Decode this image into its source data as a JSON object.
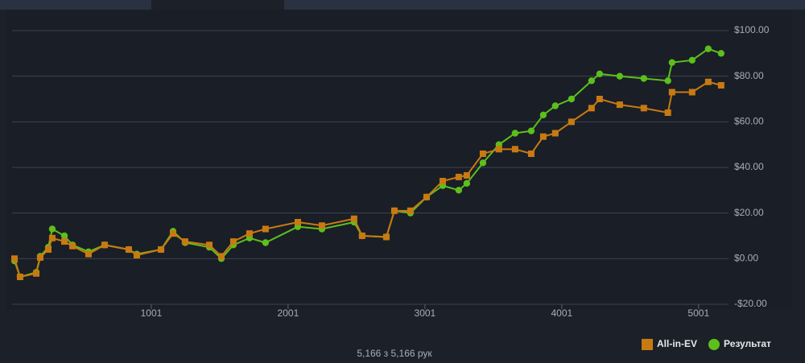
{
  "chart_data": {
    "type": "line",
    "x": [
      1,
      42,
      160,
      189,
      248,
      277,
      366,
      425,
      542,
      660,
      836,
      895,
      1072,
      1160,
      1248,
      1425,
      1513,
      1601,
      1719,
      1836,
      2072,
      2248,
      2483,
      2542,
      2719,
      2778,
      2895,
      3013,
      3131,
      3248,
      3307,
      3425,
      3542,
      3660,
      3778,
      3866,
      3954,
      4072,
      4219,
      4278,
      4425,
      4601,
      4777,
      4807,
      4954,
      5072,
      5166
    ],
    "series": [
      {
        "name": "Результат",
        "color": "#5cbf1c",
        "marker": "circle",
        "values": [
          -1,
          -8,
          -6,
          1,
          5,
          13,
          10,
          6,
          3,
          6,
          4,
          2,
          4,
          12,
          7,
          5,
          0,
          6,
          9,
          7,
          14,
          13,
          16,
          10,
          9.5,
          21,
          20,
          27,
          32,
          30,
          33,
          42,
          50,
          55,
          56,
          63,
          67,
          70,
          78,
          81,
          80,
          79,
          78,
          86,
          87,
          92,
          90
        ]
      },
      {
        "name": "All-in-EV",
        "color": "#c87a12",
        "marker": "square",
        "values": [
          0,
          -8,
          -6.5,
          0.5,
          4,
          9,
          7.5,
          5.5,
          2,
          6,
          4,
          1.5,
          4,
          11,
          7.5,
          6,
          1,
          7.5,
          11,
          13,
          16,
          14.5,
          17.5,
          10,
          9.5,
          21,
          21,
          27,
          34,
          35.8,
          36.5,
          46,
          48,
          48,
          46,
          53.5,
          55,
          60,
          66,
          70,
          67.5,
          66,
          64,
          73,
          73,
          77.5,
          76
        ]
      }
    ],
    "legend_order": [
      1,
      0
    ],
    "xlim": [
      1,
      5220
    ],
    "xticks": [
      1001,
      2001,
      3001,
      4001,
      5001
    ],
    "ylim": [
      -20,
      100
    ],
    "yticks": [
      {
        "value": -20,
        "label": "-$20.00"
      },
      {
        "value": 0,
        "label": "$0.00"
      },
      {
        "value": 20,
        "label": "$20.00"
      },
      {
        "value": 40,
        "label": "$40.00"
      },
      {
        "value": 60,
        "label": "$60.00"
      },
      {
        "value": 80,
        "label": "$80.00"
      },
      {
        "value": 100,
        "label": "$100.00"
      }
    ],
    "grid": true,
    "legend": "lower right",
    "footer": "5,166 з 5,166 рук"
  }
}
